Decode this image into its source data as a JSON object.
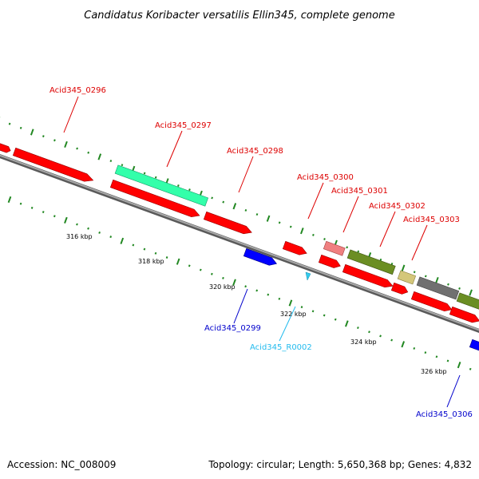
{
  "title": "Candidatus Koribacter versatilis Ellin345, complete genome",
  "footer": {
    "accession": "Accession: NC_008009",
    "summary": "Topology: circular; Length: 5,650,368 bp; Genes: 4,832"
  },
  "scale_labels": [
    "316 kbp",
    "318 kbp",
    "320 kbp",
    "322 kbp",
    "324 kbp",
    "326 kbp"
  ],
  "gene_labels": [
    {
      "text": "Acid345_0296",
      "color": "#dd0000"
    },
    {
      "text": "Acid345_0297",
      "color": "#dd0000"
    },
    {
      "text": "Acid345_0298",
      "color": "#dd0000"
    },
    {
      "text": "Acid345_0300",
      "color": "#dd0000"
    },
    {
      "text": "Acid345_0301",
      "color": "#dd0000"
    },
    {
      "text": "Acid345_0302",
      "color": "#dd0000"
    },
    {
      "text": "Acid345_0303",
      "color": "#dd0000"
    },
    {
      "text": "Acid345_0299",
      "color": "#0000cc"
    },
    {
      "text": "Acid345_R0002",
      "color": "#22bbee"
    },
    {
      "text": "Acid345_0306",
      "color": "#0000cc"
    }
  ],
  "colors": {
    "cds": "#ff0000",
    "cds_reverse": "#0000ff",
    "rrna": "#33ffaa",
    "trna": "#33ccee",
    "feature_pink": "#f08080",
    "feature_olive": "#6b8e23",
    "feature_khaki": "#d4c77a",
    "feature_gray": "#707070",
    "backbone": "#808080",
    "tick": "#228822"
  }
}
